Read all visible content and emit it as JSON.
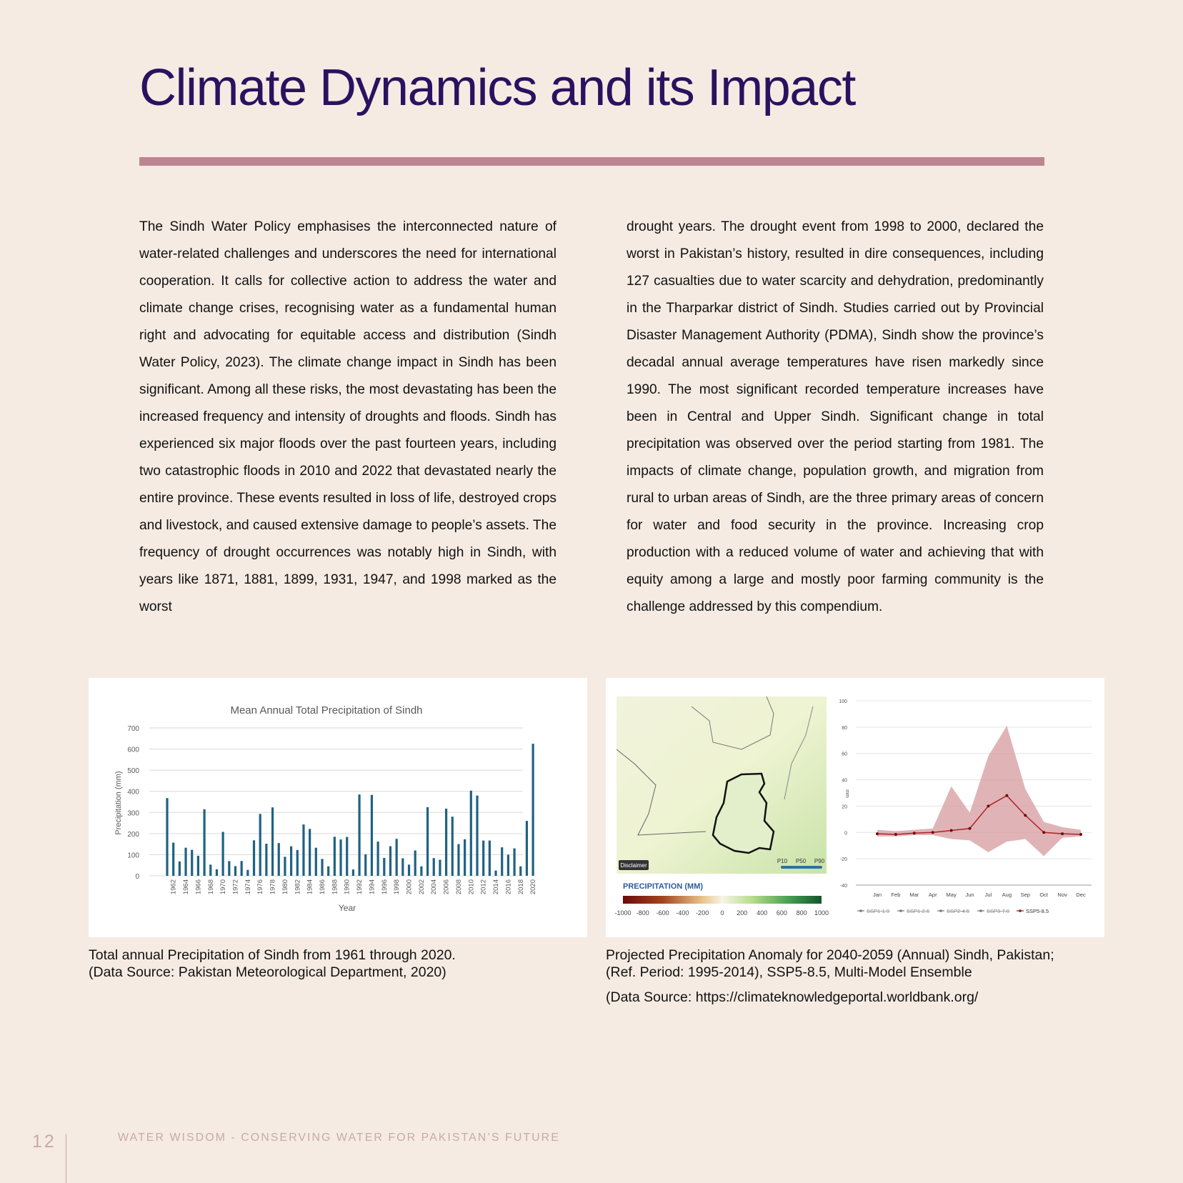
{
  "page": {
    "title": "Climate Dynamics and its Impact",
    "page_number": "12",
    "footer": "WATER WISDOM - CONSERVING WATER FOR PAKISTAN’S FUTURE",
    "colors": {
      "background": "#f5ebe3",
      "title": "#2c1160",
      "rule": "#bd8591",
      "footer": "#c9a9a9",
      "bar": "#1f6283"
    }
  },
  "body": {
    "left_paragraph": "The Sindh Water Policy emphasises the interconnected nature of water-related challenges and underscores the need for international cooperation. It calls for collective action to address the water and climate change crises, recognising water as a fundamental human right and advocating for equitable access and distribution (Sindh Water Policy, 2023). The climate change impact in Sindh has been significant. Among all these risks, the most devastating has been the increased frequency and intensity of droughts and floods. Sindh has experienced six major floods over the past fourteen years, including two catastrophic floods in 2010 and 2022 that devastated nearly the entire province. These events resulted in loss of life, destroyed crops and livestock, and caused extensive damage to people’s assets. The frequency of drought occurrences was notably high in Sindh, with years like 1871, 1881, 1899, 1931, 1947, and 1998 marked as the worst",
    "right_paragraph": "drought years. The drought event from 1998 to 2000, declared the worst in Pakistan’s history, resulted in dire consequences, including 127 casualties due to water scarcity and dehydration, predominantly in the Tharparkar district of Sindh. Studies carried out by Provincial Disaster Management Authority (PDMA), Sindh show the province’s decadal annual average temperatures have risen markedly since 1990. The most significant recorded temperature increases have been in Central and Upper Sindh. Significant change in total precipitation was observed over the period starting from 1981. The impacts of climate change, population growth, and migration from rural to urban areas of Sindh, are the three primary areas of concern for water and food security in the province. Increasing crop production with a reduced volume of water and achieving that with equity among a large and mostly poor farming community is the challenge addressed by this compendium."
  },
  "captions": {
    "left_line1": "Total annual Precipitation of Sindh from 1961 through 2020.",
    "left_line2": "(Data Source: Pakistan Meteorological Department, 2020)",
    "right_line1": "Projected Precipitation Anomaly for 2040-2059 (Annual) Sindh, Pakistan;",
    "right_line2": "(Ref. Period: 1995-2014), SSP5-8.5, Multi-Model Ensemble",
    "right_line3": "(Data Source: https://climateknowledgeportal.worldbank.org/"
  },
  "map": {
    "disclaimer": "Disclaimer",
    "legend_title": "PRECIPITATION (MM)",
    "legend_ticks": [
      "-1000",
      "-800",
      "-600",
      "-400",
      "-200",
      "0",
      "200",
      "400",
      "600",
      "800",
      "1000"
    ],
    "percentiles": [
      "P10",
      "P50",
      "P90"
    ]
  },
  "chart_data": [
    {
      "type": "bar",
      "title": "Mean Annual Total Precipitation of Sindh",
      "xlabel": "Year",
      "ylabel": "Precipitation (mm)",
      "ylim": [
        0,
        700
      ],
      "yticks": [
        0,
        100,
        200,
        300,
        400,
        500,
        600,
        700
      ],
      "grid": true,
      "categories": [
        1961,
        1962,
        1963,
        1964,
        1965,
        1966,
        1967,
        1968,
        1969,
        1970,
        1971,
        1972,
        1973,
        1974,
        1975,
        1976,
        1977,
        1978,
        1979,
        1980,
        1981,
        1982,
        1983,
        1984,
        1985,
        1986,
        1987,
        1988,
        1989,
        1990,
        1991,
        1992,
        1993,
        1994,
        1995,
        1996,
        1997,
        1998,
        1999,
        2000,
        2001,
        2002,
        2003,
        2004,
        2005,
        2006,
        2007,
        2008,
        2009,
        2010,
        2011,
        2012,
        2013,
        2014,
        2015,
        2016,
        2017,
        2018,
        2019,
        2020
      ],
      "tick_labels": [
        "1962",
        "1964",
        "1966",
        "1968",
        "1970",
        "1972",
        "1974",
        "1976",
        "1978",
        "1980",
        "1982",
        "1984",
        "1986",
        "1988",
        "1990",
        "1992",
        "1994",
        "1996",
        "1998",
        "2000",
        "2002",
        "2004",
        "2006",
        "2008",
        "2010",
        "2012",
        "2014",
        "2016",
        "2018",
        "2020"
      ],
      "values": [
        368,
        157,
        68,
        133,
        123,
        95,
        315,
        53,
        31,
        208,
        70,
        46,
        70,
        28,
        168,
        293,
        152,
        324,
        155,
        90,
        140,
        122,
        243,
        222,
        133,
        80,
        45,
        185,
        172,
        184,
        30,
        385,
        102,
        383,
        162,
        85,
        140,
        175,
        83,
        53,
        120,
        45,
        325,
        84,
        76,
        318,
        280,
        150,
        173,
        403,
        380,
        167,
        167,
        25,
        135,
        100,
        130,
        45,
        260,
        625
      ]
    },
    {
      "type": "area",
      "title": "",
      "ylabel": "mm",
      "ylim": [
        -40,
        100
      ],
      "yticks": [
        100,
        80,
        60,
        40,
        20,
        0,
        -20,
        -40
      ],
      "grid": true,
      "categories": [
        "Jan",
        "Feb",
        "Mar",
        "Apr",
        "May",
        "Jun",
        "Jul",
        "Aug",
        "Sep",
        "Oct",
        "Nov",
        "Dec"
      ],
      "legend": [
        "SSP1-1.9",
        "SSP1-2.6",
        "SSP2-4.5",
        "SSP3-7.0",
        "SSP5-8.5"
      ],
      "legend_placement": "bottom",
      "series": [
        {
          "name": "SSP5-8.5",
          "values": [
            -1,
            -1.5,
            -0.5,
            0,
            1.5,
            3,
            20,
            28,
            13,
            0,
            -1,
            -1.5
          ]
        }
      ],
      "band": {
        "upper": [
          2,
          1,
          2,
          3,
          35,
          15,
          58,
          81,
          33,
          8,
          4,
          2
        ],
        "lower": [
          -3,
          -3,
          -2,
          -2,
          -5,
          -6,
          -15,
          -7,
          -5,
          -18,
          -4,
          -3
        ]
      }
    }
  ]
}
